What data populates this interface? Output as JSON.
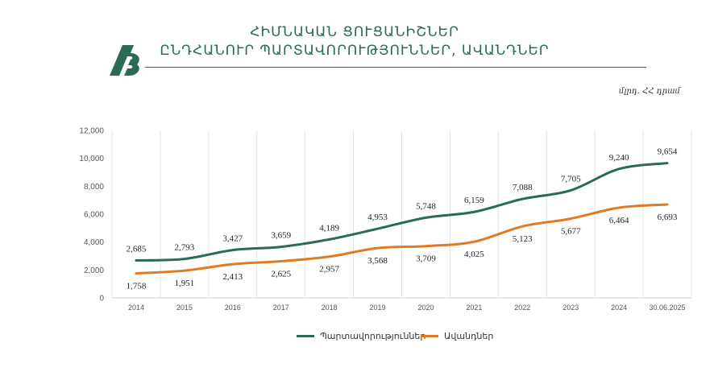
{
  "header": {
    "title_line1": "ՀԻՄՆԱԿԱՆ ՑՈՒՑԱՆԻՇՆԵՐ",
    "title_line2": "ԸՆԴՀԱՆՈՒՐ ՊԱՐՏԱՎՈՐՈՒԹՅՈՒՆՆԵՐ, ԱՎԱՆԴՆԵՐ",
    "unit": "մլրդ. ՀՀ դրամ",
    "logo_icon": "bank-logo-icon",
    "accent_color": "#2b6b55"
  },
  "chart_data": {
    "type": "line",
    "categories": [
      "2014",
      "2015",
      "2016",
      "2017",
      "2018",
      "2019",
      "2020",
      "2021",
      "2022",
      "2023",
      "2024",
      "30.06.2025"
    ],
    "ylim": [
      0,
      12000
    ],
    "yticks": [
      0,
      2000,
      4000,
      6000,
      8000,
      10000,
      12000
    ],
    "ytick_labels": [
      "0",
      "2,000",
      "4,000",
      "6,000",
      "8,000",
      "10,000",
      "12,000"
    ],
    "grid": "vertical",
    "legend_position": "bottom",
    "series": [
      {
        "name": "Պարտավորություններ",
        "color": "#2b6b55",
        "values": [
          2685,
          2793,
          3427,
          3659,
          4189,
          4953,
          5748,
          6159,
          7088,
          7705,
          9240,
          9654
        ],
        "labels": [
          "2,685",
          "2,793",
          "3,427",
          "3,659",
          "4,189",
          "4,953",
          "5,748",
          "6,159",
          "7,088",
          "7,705",
          "9,240",
          "9,654"
        ]
      },
      {
        "name": "Ավանդներ",
        "color": "#e07b24",
        "values": [
          1758,
          1951,
          2413,
          2625,
          2957,
          3568,
          3709,
          4025,
          5123,
          5677,
          6464,
          6693
        ],
        "labels": [
          "1,758",
          "1,951",
          "2,413",
          "2,625",
          "2,957",
          "3,568",
          "3,709",
          "4,025",
          "5,123",
          "5,677",
          "6,464",
          "6,693"
        ]
      }
    ]
  }
}
